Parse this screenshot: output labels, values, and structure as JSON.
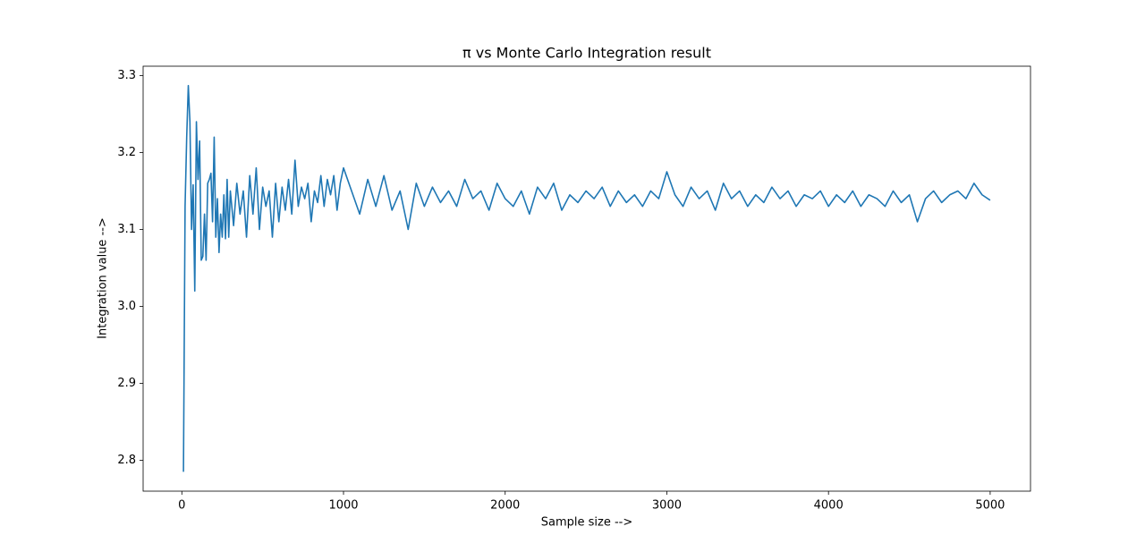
{
  "chart_data": {
    "type": "line",
    "title": "π vs Monte Carlo Integration result",
    "x_label": "Sample size -->",
    "y_label": "Integration value -->",
    "color": "#1f77b4",
    "x": [
      10,
      20,
      30,
      40,
      50,
      60,
      70,
      80,
      90,
      100,
      110,
      120,
      130,
      140,
      150,
      160,
      170,
      180,
      190,
      200,
      210,
      220,
      230,
      240,
      250,
      260,
      270,
      280,
      290,
      300,
      320,
      340,
      360,
      380,
      400,
      420,
      440,
      460,
      480,
      500,
      520,
      540,
      560,
      580,
      600,
      620,
      640,
      660,
      680,
      700,
      720,
      740,
      760,
      780,
      800,
      820,
      840,
      860,
      880,
      900,
      920,
      940,
      960,
      980,
      1000,
      1050,
      1100,
      1150,
      1200,
      1250,
      1300,
      1350,
      1400,
      1450,
      1500,
      1550,
      1600,
      1650,
      1700,
      1750,
      1800,
      1850,
      1900,
      1950,
      2000,
      2050,
      2100,
      2150,
      2200,
      2250,
      2300,
      2350,
      2400,
      2450,
      2500,
      2550,
      2600,
      2650,
      2700,
      2750,
      2800,
      2850,
      2900,
      2950,
      3000,
      3050,
      3100,
      3150,
      3200,
      3250,
      3300,
      3350,
      3400,
      3450,
      3500,
      3550,
      3600,
      3650,
      3700,
      3750,
      3800,
      3850,
      3900,
      3950,
      4000,
      4050,
      4100,
      4150,
      4200,
      4250,
      4300,
      4350,
      4400,
      4450,
      4500,
      4550,
      4600,
      4650,
      4700,
      4750,
      4800,
      4850,
      4900,
      4950,
      5000
    ],
    "values": [
      2.785,
      3.13,
      3.22,
      3.287,
      3.24,
      3.1,
      3.158,
      3.02,
      3.24,
      3.165,
      3.215,
      3.06,
      3.065,
      3.12,
      3.06,
      3.16,
      3.165,
      3.173,
      3.11,
      3.22,
      3.09,
      3.14,
      3.07,
      3.12,
      3.09,
      3.145,
      3.088,
      3.165,
      3.09,
      3.15,
      3.105,
      3.16,
      3.12,
      3.15,
      3.09,
      3.17,
      3.12,
      3.18,
      3.1,
      3.155,
      3.13,
      3.15,
      3.09,
      3.16,
      3.11,
      3.155,
      3.125,
      3.165,
      3.12,
      3.19,
      3.13,
      3.155,
      3.14,
      3.16,
      3.11,
      3.15,
      3.135,
      3.17,
      3.13,
      3.165,
      3.145,
      3.17,
      3.125,
      3.16,
      3.18,
      3.15,
      3.12,
      3.165,
      3.13,
      3.17,
      3.125,
      3.15,
      3.1,
      3.16,
      3.13,
      3.155,
      3.135,
      3.15,
      3.13,
      3.165,
      3.14,
      3.15,
      3.125,
      3.16,
      3.14,
      3.13,
      3.15,
      3.12,
      3.155,
      3.14,
      3.16,
      3.125,
      3.145,
      3.135,
      3.15,
      3.14,
      3.155,
      3.13,
      3.15,
      3.135,
      3.145,
      3.13,
      3.15,
      3.14,
      3.175,
      3.145,
      3.13,
      3.155,
      3.14,
      3.15,
      3.125,
      3.16,
      3.14,
      3.15,
      3.13,
      3.145,
      3.135,
      3.155,
      3.14,
      3.15,
      3.13,
      3.145,
      3.14,
      3.15,
      3.13,
      3.145,
      3.135,
      3.15,
      3.13,
      3.145,
      3.14,
      3.13,
      3.15,
      3.135,
      3.145,
      3.11,
      3.14,
      3.15,
      3.135,
      3.145,
      3.15,
      3.14,
      3.16,
      3.145,
      3.138
    ],
    "xlim": [
      -239.5,
      5249.5
    ],
    "ylim": [
      2.7598,
      3.3122
    ],
    "xticks": [
      0,
      1000,
      2000,
      3000,
      4000,
      5000
    ],
    "yticks": [
      2.8,
      2.9,
      {
        "value": 3,
        "label": "3.0"
      },
      3.1,
      3.2,
      3.3
    ]
  }
}
